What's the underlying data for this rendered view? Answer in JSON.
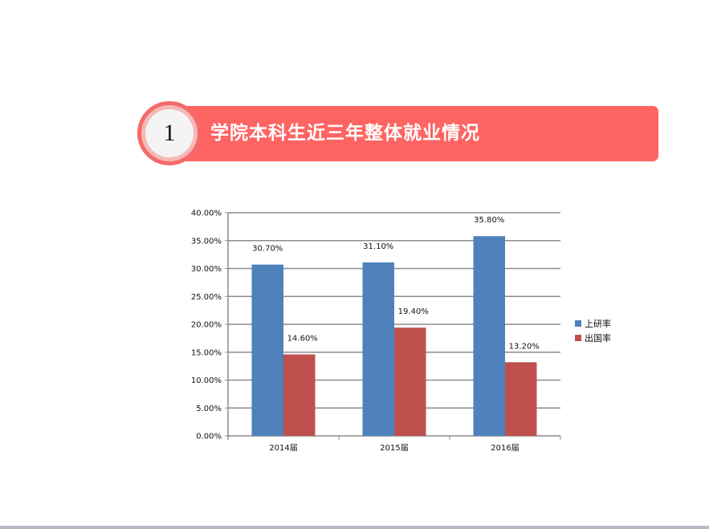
{
  "header": {
    "number": "1",
    "title": "学院本科生近三年整体就业情况",
    "banner_color": "#fe6462"
  },
  "chart_data": {
    "type": "bar",
    "categories": [
      "2014届",
      "2015届",
      "2016届"
    ],
    "series": [
      {
        "name": "上研率",
        "values": [
          30.7,
          31.1,
          35.8
        ],
        "labels": [
          "30.70%",
          "31.10%",
          "35.80%"
        ],
        "color": "#4f81bd"
      },
      {
        "name": "出国率",
        "values": [
          14.6,
          19.4,
          13.2
        ],
        "labels": [
          "14.60%",
          "19.40%",
          "13.20%"
        ],
        "color": "#c0504d"
      }
    ],
    "yticks": [
      "0.00%",
      "5.00%",
      "10.00%",
      "15.00%",
      "20.00%",
      "25.00%",
      "30.00%",
      "35.00%",
      "40.00%"
    ],
    "ylim": [
      0,
      40
    ],
    "grid": true,
    "legend": "right"
  }
}
